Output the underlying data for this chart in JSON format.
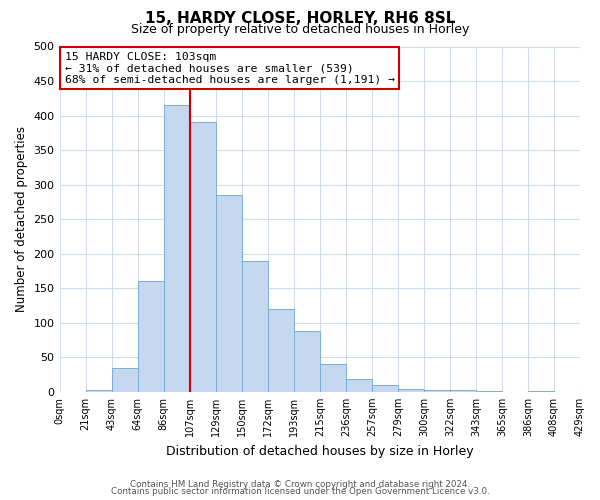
{
  "title": "15, HARDY CLOSE, HORLEY, RH6 8SL",
  "subtitle": "Size of property relative to detached houses in Horley",
  "xlabel": "Distribution of detached houses by size in Horley",
  "ylabel": "Number of detached properties",
  "bin_labels": [
    "0sqm",
    "21sqm",
    "43sqm",
    "64sqm",
    "86sqm",
    "107sqm",
    "129sqm",
    "150sqm",
    "172sqm",
    "193sqm",
    "215sqm",
    "236sqm",
    "257sqm",
    "279sqm",
    "300sqm",
    "322sqm",
    "343sqm",
    "365sqm",
    "386sqm",
    "408sqm",
    "429sqm"
  ],
  "bar_heights": [
    0,
    2,
    35,
    160,
    415,
    390,
    285,
    190,
    120,
    88,
    40,
    18,
    10,
    4,
    2,
    2,
    1,
    0,
    1,
    0
  ],
  "bar_color": "#c5d8f0",
  "bar_edge_color": "#7aafd4",
  "grid_color": "#d0dce8",
  "vline_color": "#cc0000",
  "annotation_text_line1": "15 HARDY CLOSE: 103sqm",
  "annotation_text_line2": "← 31% of detached houses are smaller (539)",
  "annotation_text_line3": "68% of semi-detached houses are larger (1,191) →",
  "annotation_box_color": "#ffffff",
  "annotation_box_edge": "#cc0000",
  "ylim": [
    0,
    500
  ],
  "yticks": [
    0,
    50,
    100,
    150,
    200,
    250,
    300,
    350,
    400,
    450,
    500
  ],
  "vline_bin_index": 5,
  "footer1": "Contains HM Land Registry data © Crown copyright and database right 2024.",
  "footer2": "Contains public sector information licensed under the Open Government Licence v3.0."
}
